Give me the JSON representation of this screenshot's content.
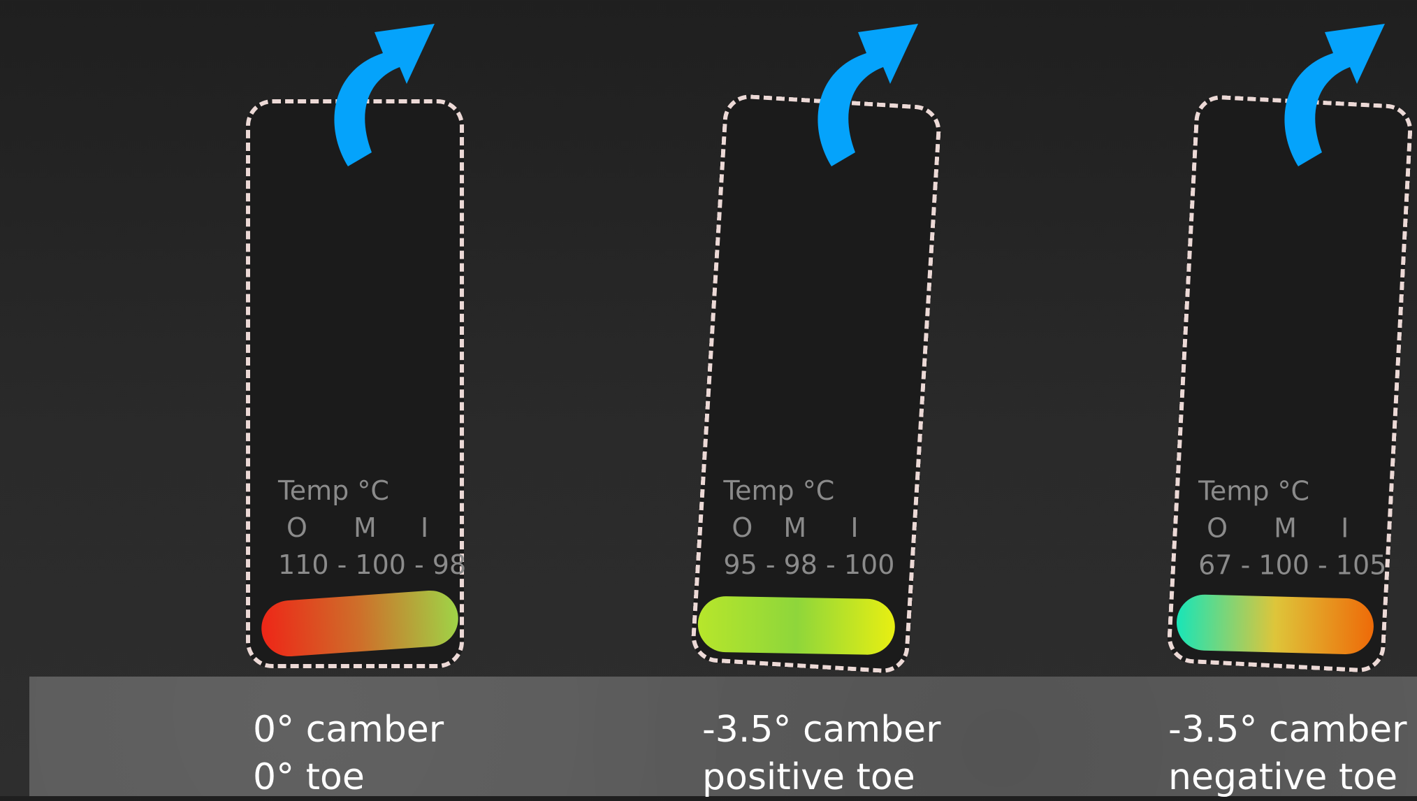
{
  "colors": {
    "arrow": "#05a3fb",
    "tread_outline": "#ecd9d6",
    "temp_text": "#8b8b8b",
    "caption_text": "#ffffff"
  },
  "tires": [
    {
      "temp_label": "Temp °C",
      "col_o": "O",
      "col_m": "M",
      "col_i": "I",
      "values": "110 - 100 - 98",
      "heat_colors": [
        "#ee2617",
        "#ce6f2a",
        "#9fd447"
      ],
      "caption_line1": "0° camber",
      "caption_line2": "0° toe"
    },
    {
      "temp_label": "Temp °C",
      "col_o": "O",
      "col_m": "M",
      "col_i": "I",
      "values": "95 - 98 - 100",
      "heat_colors": [
        "#b7e62b",
        "#8ed63b",
        "#e8ef12"
      ],
      "caption_line1": "-3.5° camber",
      "caption_line2": "positive toe"
    },
    {
      "temp_label": "Temp °C",
      "col_o": "O",
      "col_m": "M",
      "col_i": "I",
      "values": "67 - 100 - 105",
      "heat_colors": [
        "#18e5b8",
        "#dec53a",
        "#ee6a08"
      ],
      "caption_line1": "-3.5° camber",
      "caption_line2": "negative toe"
    }
  ]
}
